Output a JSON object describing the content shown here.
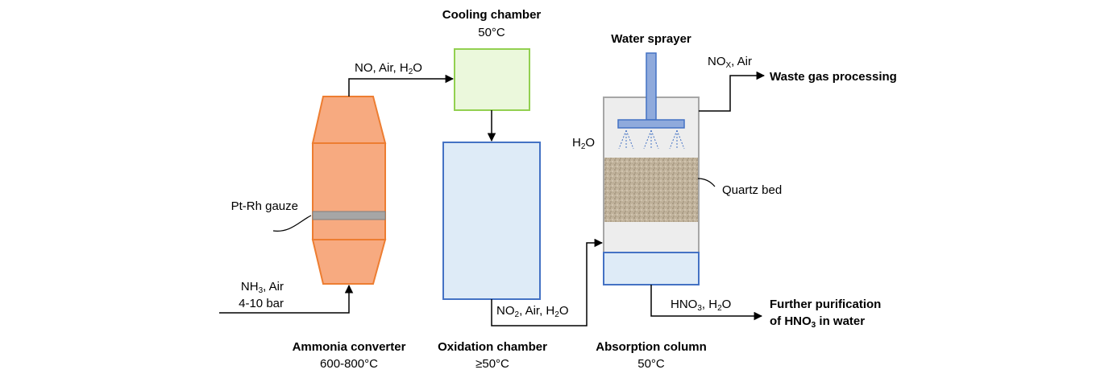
{
  "labels": {
    "cooling_title": "Cooling chamber",
    "cooling_temp": "50°C",
    "water_sprayer": "Water sprayer",
    "nox_air_prefix": "NO",
    "nox_sub": "X",
    "nox_air_suffix": ", Air",
    "waste_gas": "Waste gas processing",
    "no_air_h2o_prefix": "NO, Air, H",
    "h2o_sub": "2",
    "h2o_o": "O",
    "h2o_left_h": "H",
    "h2o_left_sub": "2",
    "h2o_left_o": "O",
    "quartz_bed": "Quartz bed",
    "pt_rh_gauze": "Pt-Rh gauze",
    "nh3_prefix": "NH",
    "nh3_sub": "3",
    "nh3_suffix": ", Air",
    "pressure": "4-10 bar",
    "no2_prefix": "NO",
    "no2_sub": "2",
    "no2_mid": ", Air, H",
    "no2_h2o_sub": "2",
    "no2_o": "O",
    "hno3_prefix": "HNO",
    "hno3_sub": "3",
    "hno3_mid": ", H",
    "hno3_h2o_sub": "2",
    "hno3_o": "O",
    "further_line1": "Further purification",
    "further_line2_prefix": "of HNO",
    "further_line2_sub": "3",
    "further_line2_suffix": " in water",
    "ammonia_title": "Ammonia converter",
    "ammonia_temp": "600-800°C",
    "oxidation_title": "Oxidation chamber",
    "oxidation_temp": "≥50°C",
    "absorption_title": "Absorption column",
    "absorption_temp": "50°C"
  },
  "colors": {
    "converter_fill": "#F7AA80",
    "converter_stroke": "#ED7D31",
    "gauze_fill": "#A6A6A6",
    "cooling_fill": "#EBF8DC",
    "cooling_stroke": "#92D050",
    "oxidation_fill": "#DEEBF7",
    "oxidation_stroke": "#4472C4",
    "column_fill": "#EDEDED",
    "column_stroke": "#A6A6A6",
    "sprayer_fill": "#8FAADC",
    "sprayer_stroke": "#4472C4",
    "quartz_fill": "#BFB19A"
  }
}
